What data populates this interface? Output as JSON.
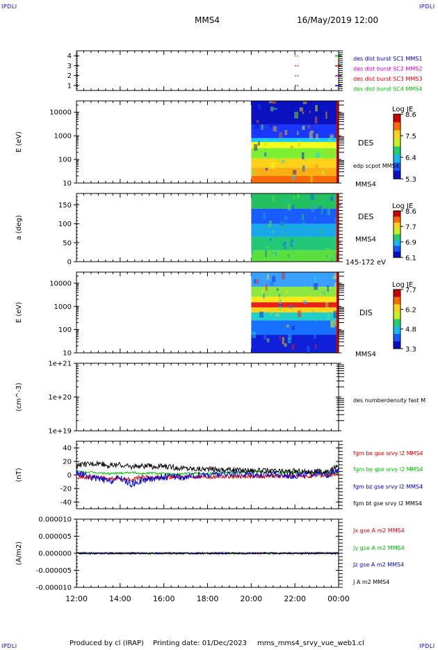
{
  "header": {
    "corner_tl": "IPDLI",
    "corner_tr": "IPDLI",
    "corner_bl": "IPDLI",
    "corner_br": "IPDLI",
    "spacecraft": "MMS4",
    "datetime": "16/May/2019 12:00"
  },
  "footer": {
    "producer": "Produced by cl (IRAP)",
    "printing": "Printing date: 01/Dec/2023",
    "file": "mms_mms4_srvy_vue_web1.cl"
  },
  "colors": {
    "mms1": "#0000cc",
    "mms2": "#cc00cc",
    "mms3": "#dd0000",
    "mms4": "#00bb00",
    "black": "#000000"
  },
  "chart_data": [
    {
      "type": "scatter",
      "panel": "availability",
      "ylabel": "",
      "yticks": [
        "1",
        "2",
        "3",
        "4"
      ],
      "ylim": [
        0.5,
        4.5
      ],
      "legend": [
        {
          "name": "des dist burst SC1 MMS1",
          "color": "#0000cc"
        },
        {
          "name": "des dist burst SC2 MMS2",
          "color": "#cc00cc"
        },
        {
          "name": "des dist burst SC3 MMS3",
          "color": "#dd0000"
        },
        {
          "name": "des dist burst SC4 MMS4",
          "color": "#00bb00"
        }
      ],
      "x": [
        22.0,
        22.1,
        23.9,
        24.0
      ],
      "series": [
        {
          "name": "des dist burst SC1 MMS1",
          "y": 1
        },
        {
          "name": "des dist burst SC2 MMS2",
          "y": 2
        },
        {
          "name": "des dist burst SC3 MMS3",
          "y": 3
        },
        {
          "name": "des dist burst SC4 MMS4",
          "y": 4
        }
      ]
    },
    {
      "type": "heatmap",
      "panel": "des-energy",
      "ylabel": "E (eV)",
      "scale": "log",
      "yticks": [
        "10",
        "100",
        "1000",
        "10000"
      ],
      "ylim": [
        10,
        30000
      ],
      "data_start": 20.0,
      "labels": [
        "DES",
        "edp scpot MMS4",
        "MMS4"
      ],
      "colorbar": {
        "title": "Log JE",
        "ticks": [
          "8.6",
          "7.5",
          "6.4",
          "5.3"
        ],
        "range": [
          5.3,
          8.6
        ]
      },
      "bands": [
        {
          "upper": 30000,
          "lower": 3000,
          "color": "#0a12c0"
        },
        {
          "upper": 3000,
          "lower": 800,
          "color": "#1838ff"
        },
        {
          "upper": 800,
          "lower": 550,
          "color": "#18c8ff"
        },
        {
          "upper": 550,
          "lower": 300,
          "color": "#f2ff1a"
        },
        {
          "upper": 300,
          "lower": 110,
          "color": "#7cf030"
        },
        {
          "upper": 110,
          "lower": 45,
          "color": "#ffd21a"
        },
        {
          "upper": 45,
          "lower": 20,
          "color": "#ffae14"
        },
        {
          "upper": 20,
          "lower": 10,
          "color": "#ff6a00"
        }
      ]
    },
    {
      "type": "heatmap",
      "panel": "des-pitch-angle",
      "ylabel": "a (deg)",
      "yticks": [
        "0",
        "50",
        "100",
        "150"
      ],
      "ylim": [
        0,
        180
      ],
      "data_start": 20.0,
      "labels": [
        "DES",
        "MMS4",
        "145-172 eV"
      ],
      "colorbar": {
        "title": "Log JE",
        "ticks": [
          "8.6",
          "7.7",
          "6.9",
          "6.1"
        ],
        "range": [
          6.1,
          8.6
        ]
      },
      "bands": [
        {
          "upper": 180,
          "lower": 140,
          "color": "#22c060"
        },
        {
          "upper": 140,
          "lower": 100,
          "color": "#1a5cff"
        },
        {
          "upper": 100,
          "lower": 65,
          "color": "#18a8e8"
        },
        {
          "upper": 65,
          "lower": 30,
          "color": "#22c878"
        },
        {
          "upper": 30,
          "lower": 0,
          "color": "#5ce040"
        }
      ]
    },
    {
      "type": "heatmap",
      "panel": "dis-energy",
      "ylabel": "E (eV)",
      "scale": "log",
      "yticks": [
        "10",
        "100",
        "1000",
        "10000"
      ],
      "ylim": [
        10,
        30000
      ],
      "data_start": 20.0,
      "labels": [
        "DIS",
        "MMS4"
      ],
      "colorbar": {
        "title": "Log JE",
        "ticks": [
          "7.7",
          "6.2",
          "4.8",
          "3.3"
        ],
        "range": [
          3.3,
          7.7
        ]
      },
      "bands": [
        {
          "upper": 30000,
          "lower": 7000,
          "color": "#3aa0ff"
        },
        {
          "upper": 7000,
          "lower": 2600,
          "color": "#8ce840"
        },
        {
          "upper": 2600,
          "lower": 1500,
          "color": "#ffe81a"
        },
        {
          "upper": 1500,
          "lower": 900,
          "color": "#e8201a"
        },
        {
          "upper": 900,
          "lower": 550,
          "color": "#ffd21a"
        },
        {
          "upper": 550,
          "lower": 250,
          "color": "#22d0c8"
        },
        {
          "upper": 250,
          "lower": 60,
          "color": "#1870ff"
        },
        {
          "upper": 60,
          "lower": 10,
          "color": "#1020d8"
        }
      ]
    },
    {
      "type": "line",
      "panel": "density",
      "ylabel": "(cm^-3)",
      "scale": "log",
      "yticks": [
        "1e+19",
        "1e+20",
        "1e+21"
      ],
      "ylim": [
        1e+19,
        1e+21
      ],
      "series": [
        {
          "name": "des numberdensity fast M",
          "color": "#000000",
          "x": [],
          "y": []
        }
      ]
    },
    {
      "type": "line",
      "panel": "magnetic-field",
      "ylabel": "(nT)",
      "yticks": [
        "-40",
        "-20",
        "0",
        "20",
        "40"
      ],
      "ylim": [
        -50,
        50
      ],
      "x": [
        12.0,
        12.5,
        13.0,
        13.5,
        14.0,
        14.5,
        15.0,
        15.5,
        16.0,
        16.5,
        17.0,
        17.5,
        18.0,
        18.5,
        19.0,
        19.5,
        20.0,
        20.5,
        21.0,
        21.5,
        22.0,
        22.5,
        23.0,
        23.5,
        24.0
      ],
      "series": [
        {
          "name": "fgm bx gse srvy l2 MMS4",
          "color": "#dd0000",
          "values": [
            -2,
            -4,
            -3,
            -6,
            -5,
            -7,
            -3,
            -5,
            -4,
            -2,
            -3,
            -2,
            -3,
            -2,
            -2,
            -3,
            -2,
            -2,
            -1,
            -2,
            -1,
            -3,
            0,
            -1,
            2
          ]
        },
        {
          "name": "fgm by gse srvy l2 MMS4",
          "color": "#00bb00",
          "values": [
            5,
            4,
            3,
            2,
            3,
            4,
            2,
            3,
            2,
            1,
            2,
            3,
            2,
            3,
            4,
            4,
            5,
            5,
            4,
            4,
            3,
            4,
            3,
            2,
            4
          ]
        },
        {
          "name": "fgm bz gse srvy l2 MMS4",
          "color": "#0000cc",
          "values": [
            3,
            -2,
            -6,
            -10,
            -4,
            -14,
            -8,
            -5,
            -3,
            -2,
            -4,
            -1,
            0,
            1,
            2,
            1,
            2,
            0,
            1,
            0,
            -1,
            1,
            2,
            0,
            6
          ]
        },
        {
          "name": "fgm bt gse srvy l2 MMS4",
          "color": "#000000",
          "values": [
            14,
            16,
            18,
            14,
            15,
            12,
            14,
            12,
            13,
            11,
            10,
            9,
            9,
            8,
            8,
            7,
            7,
            6,
            6,
            5,
            6,
            5,
            5,
            4,
            14
          ]
        }
      ]
    },
    {
      "type": "line",
      "panel": "current-density",
      "ylabel": "(A/m2)",
      "yticks": [
        "-0.000010",
        "-0.000005",
        "0.000000",
        "0.000005",
        "0.000010"
      ],
      "ylim": [
        -1e-05,
        1e-05
      ],
      "x": [
        12.0,
        14.0,
        16.0,
        18.0,
        20.0,
        22.0,
        24.0
      ],
      "series": [
        {
          "name": "Jx gse A m2 MMS4",
          "color": "#dd0000",
          "values": [
            0,
            0,
            0,
            0,
            0,
            0,
            0
          ]
        },
        {
          "name": "Jy gse A m2 MMS4",
          "color": "#00bb00",
          "values": [
            0,
            0,
            0,
            0,
            0,
            0,
            0
          ]
        },
        {
          "name": "Jz gse A m2 MMS4",
          "color": "#0000cc",
          "values": [
            0,
            0,
            0,
            0,
            0,
            0,
            0
          ]
        },
        {
          "name": "J A m2 MMS4",
          "color": "#000000",
          "values": [
            0,
            0,
            0,
            0,
            0,
            0,
            0
          ]
        }
      ]
    }
  ],
  "xaxis": {
    "xlim": [
      12,
      24
    ],
    "ticks": [
      {
        "value": 12,
        "label": "12:00"
      },
      {
        "value": 14,
        "label": "14:00"
      },
      {
        "value": 16,
        "label": "16:00"
      },
      {
        "value": 18,
        "label": "18:00"
      },
      {
        "value": 20,
        "label": "20:00"
      },
      {
        "value": 22,
        "label": "22:00"
      },
      {
        "value": 24,
        "label": "00:00"
      }
    ]
  }
}
